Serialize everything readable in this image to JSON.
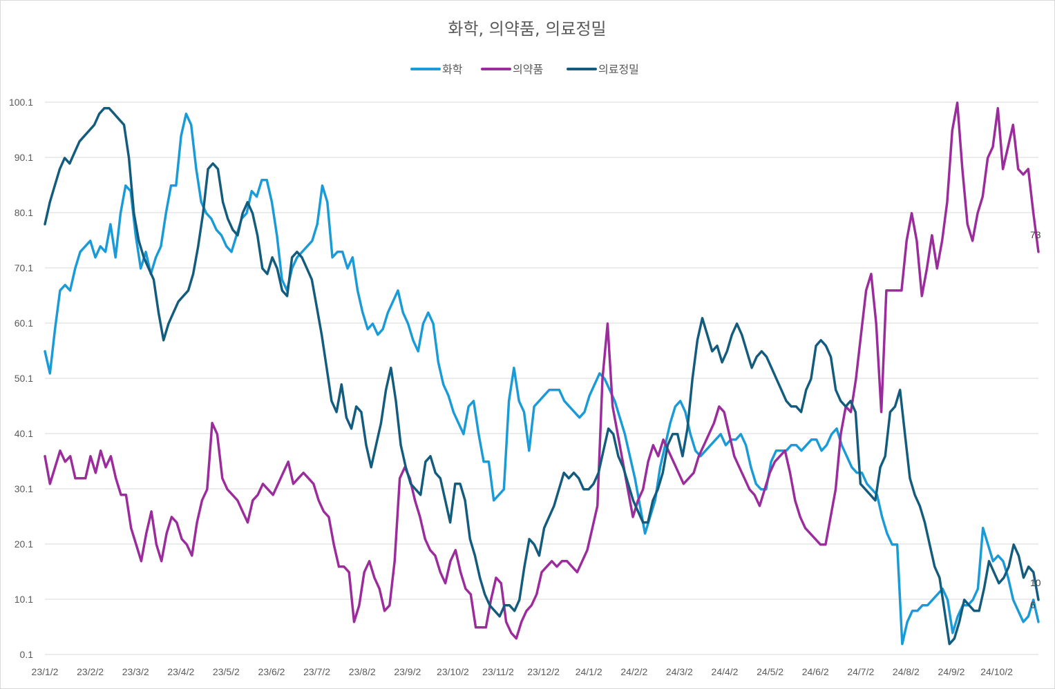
{
  "chart_data": {
    "type": "line",
    "title": "화학, 의약품, 의료정밀",
    "xlabel": "",
    "ylabel": "",
    "ylim": [
      0.1,
      100.1
    ],
    "y_ticks": [
      "100.1",
      "90.1",
      "80.1",
      "70.1",
      "60.1",
      "50.1",
      "40.1",
      "30.1",
      "20.1",
      "10.1",
      "0.1"
    ],
    "x_ticks": [
      "23/1/2",
      "23/2/2",
      "23/3/2",
      "23/4/2",
      "23/5/2",
      "23/6/2",
      "23/7/2",
      "23/8/2",
      "23/9/2",
      "23/10/2",
      "23/11/2",
      "23/12/2",
      "24/1/2",
      "24/2/2",
      "24/3/2",
      "24/4/2",
      "24/5/2",
      "24/6/2",
      "24/7/2",
      "24/8/2",
      "24/9/2",
      "24/10/2"
    ],
    "legend_position": "top-center",
    "grid": true,
    "series": [
      {
        "name": "화학",
        "color": "#1A9BD7",
        "end_label": "6",
        "values": [
          55,
          51,
          59,
          66,
          67,
          66,
          70,
          73,
          74,
          75,
          72,
          74,
          73,
          78,
          72,
          80,
          85,
          84,
          76,
          70,
          73,
          69,
          72,
          74,
          80,
          85,
          85,
          94,
          98,
          96,
          88,
          82,
          80,
          79,
          77,
          76,
          74,
          73,
          76,
          79,
          80,
          84,
          83,
          86,
          86,
          82,
          76,
          68,
          66,
          70,
          72,
          73,
          74,
          75,
          78,
          85,
          82,
          72,
          73,
          73,
          70,
          72,
          66,
          62,
          59,
          60,
          58,
          59,
          62,
          64,
          66,
          62,
          60,
          57,
          55,
          60,
          62,
          60,
          53,
          49,
          47,
          44,
          42,
          40,
          45,
          46,
          40,
          35,
          35,
          28,
          29,
          30,
          46,
          52,
          46,
          44,
          37,
          45,
          46,
          47,
          48,
          48,
          48,
          46,
          45,
          44,
          43,
          44,
          47,
          49,
          51,
          50,
          48,
          46,
          43,
          40,
          36,
          32,
          27,
          22,
          25,
          28,
          34,
          38,
          42,
          45,
          46,
          44,
          40,
          37,
          36,
          37,
          38,
          39,
          40,
          38,
          39,
          39,
          40,
          38,
          34,
          31,
          30,
          30,
          35,
          37,
          37,
          37,
          38,
          38,
          37,
          38,
          39,
          39,
          37,
          38,
          40,
          41,
          38,
          36,
          34,
          33,
          33,
          31,
          30,
          29,
          25,
          22,
          20,
          20,
          2,
          6,
          8,
          8,
          9,
          9,
          10,
          11,
          12,
          10,
          4,
          7,
          9,
          9,
          10,
          12,
          23,
          20,
          17,
          18,
          17,
          14,
          10,
          8,
          6,
          7,
          10,
          6
        ]
      },
      {
        "name": "의약품",
        "color": "#9B2C9B",
        "end_label": "73",
        "values": [
          36,
          31,
          34,
          37,
          35,
          36,
          32,
          32,
          32,
          36,
          33,
          37,
          34,
          36,
          32,
          29,
          29,
          23,
          20,
          17,
          22,
          26,
          20,
          17,
          22,
          25,
          24,
          21,
          20,
          18,
          24,
          28,
          30,
          42,
          40,
          32,
          30,
          29,
          28,
          26,
          24,
          28,
          29,
          31,
          30,
          29,
          31,
          33,
          35,
          31,
          32,
          33,
          32,
          31,
          28,
          26,
          25,
          20,
          16,
          16,
          15,
          6,
          9,
          15,
          17,
          14,
          12,
          8,
          9,
          17,
          32,
          34,
          32,
          28,
          25,
          21,
          19,
          18,
          15,
          13,
          17,
          19,
          15,
          12,
          11,
          5,
          5,
          5,
          10,
          14,
          13,
          6,
          4,
          3,
          6,
          8,
          9,
          11,
          15,
          16,
          17,
          16,
          17,
          17,
          16,
          15,
          17,
          19,
          23,
          27,
          50,
          60,
          45,
          40,
          35,
          30,
          25,
          28,
          30,
          35,
          38,
          36,
          39,
          37,
          35,
          33,
          31,
          32,
          33,
          36,
          38,
          40,
          42,
          45,
          44,
          40,
          36,
          34,
          32,
          30,
          29,
          27,
          30,
          33,
          35,
          36,
          37,
          33,
          28,
          25,
          23,
          22,
          21,
          20,
          20,
          25,
          30,
          40,
          45,
          44,
          50,
          58,
          66,
          69,
          60,
          44,
          66,
          66,
          66,
          66,
          75,
          80,
          75,
          65,
          70,
          76,
          70,
          75,
          82,
          95,
          100,
          88,
          78,
          75,
          80,
          83,
          90,
          92,
          99,
          88,
          92,
          96,
          88,
          87,
          88,
          80,
          73
        ]
      },
      {
        "name": "의료정밀",
        "color": "#145C7D",
        "end_label": "10",
        "values": [
          78,
          82,
          85,
          88,
          90,
          89,
          91,
          93,
          94,
          95,
          96,
          98,
          99,
          99,
          98,
          97,
          96,
          90,
          80,
          75,
          72,
          70,
          68,
          62,
          57,
          60,
          62,
          64,
          65,
          66,
          69,
          74,
          80,
          88,
          89,
          88,
          82,
          79,
          77,
          76,
          80,
          82,
          80,
          76,
          70,
          69,
          72,
          70,
          66,
          65,
          72,
          73,
          72,
          70,
          68,
          63,
          58,
          52,
          46,
          44,
          49,
          43,
          41,
          45,
          44,
          38,
          34,
          38,
          42,
          48,
          52,
          46,
          38,
          34,
          31,
          30,
          29,
          35,
          36,
          33,
          32,
          28,
          24,
          31,
          31,
          28,
          21,
          18,
          14,
          11,
          9,
          8,
          7,
          9,
          9,
          8,
          10,
          16,
          21,
          20,
          18,
          23,
          25,
          27,
          30,
          33,
          32,
          33,
          32,
          30,
          30,
          31,
          33,
          37,
          41,
          40,
          36,
          34,
          31,
          28,
          26,
          24,
          24,
          28,
          30,
          33,
          38,
          40,
          40,
          36,
          41,
          50,
          57,
          61,
          58,
          55,
          56,
          53,
          55,
          58,
          60,
          58,
          55,
          52,
          54,
          55,
          54,
          52,
          50,
          48,
          46,
          45,
          45,
          44,
          48,
          50,
          56,
          57,
          56,
          54,
          48,
          46,
          45,
          46,
          44,
          31,
          30,
          29,
          28,
          34,
          36,
          44,
          45,
          48,
          40,
          32,
          29,
          27,
          24,
          20,
          16,
          14,
          8,
          2,
          3,
          6,
          10,
          9,
          8,
          8,
          12,
          17,
          15,
          13,
          14,
          16,
          20,
          18,
          14,
          16,
          15,
          10
        ]
      }
    ]
  }
}
